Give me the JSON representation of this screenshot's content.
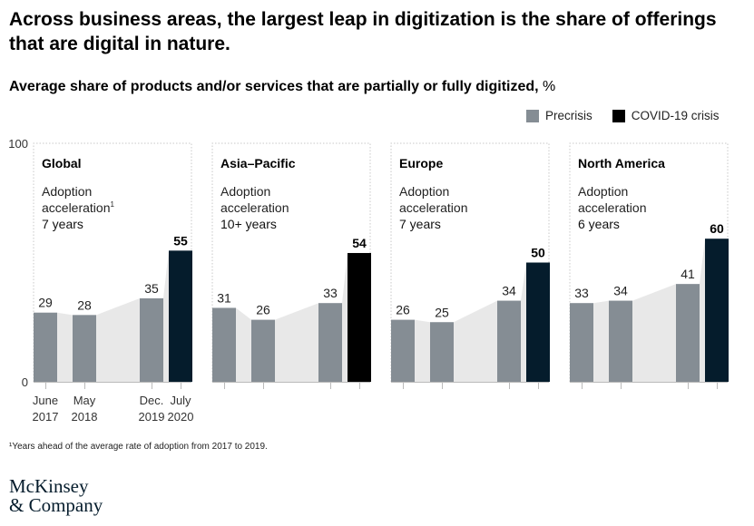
{
  "title": "Across business areas, the largest leap in digitization is the share of offerings that are digital in nature.",
  "subtitle": {
    "main": "Average share of products and/or services that are partially or fully digitized,",
    "unit": "%"
  },
  "legend": [
    {
      "label": "Precrisis",
      "color": "#858d94"
    },
    {
      "label": "COVID-19 crisis",
      "color": "#000000"
    }
  ],
  "footnote": "¹Years ahead of the average rate of adoption from 2017 to 2019.",
  "logo": {
    "line1": "McKinsey",
    "line2": "& Company"
  },
  "colors": {
    "precrisis": "#858d94",
    "area": "#e8e8e8",
    "covid_black": "#000000",
    "covid_navy": "#051c2c",
    "panel_border": "#c8c8c8"
  },
  "chart_data": {
    "type": "bar",
    "ylim": [
      0,
      100
    ],
    "y_ticks": [
      "0",
      "100"
    ],
    "x_tick_labels": [
      {
        "line1": "June",
        "line2": "2017"
      },
      {
        "line1": "May",
        "line2": "2018"
      },
      {
        "line1": "Dec.",
        "line2": "2019"
      },
      {
        "line1": "July",
        "line2": "2020"
      }
    ],
    "panels": [
      {
        "region": "Global",
        "accel_label": "Adoption acceleration",
        "accel_sup": "1",
        "accel_value": "7 years",
        "values": [
          29,
          28,
          35,
          55
        ],
        "covid_color": "#051c2c"
      },
      {
        "region": "Asia–Pacific",
        "accel_label": "Adoption acceleration",
        "accel_sup": "",
        "accel_value": "10+ years",
        "values": [
          31,
          26,
          33,
          54
        ],
        "covid_color": "#000000"
      },
      {
        "region": "Europe",
        "accel_label": "Adoption acceleration",
        "accel_sup": "",
        "accel_value": "7 years",
        "values": [
          26,
          25,
          34,
          50
        ],
        "covid_color": "#051c2c"
      },
      {
        "region": "North America",
        "accel_label": "Adoption acceleration",
        "accel_sup": "",
        "accel_value": "6 years",
        "values": [
          33,
          34,
          41,
          60
        ],
        "covid_color": "#051c2c"
      }
    ]
  }
}
